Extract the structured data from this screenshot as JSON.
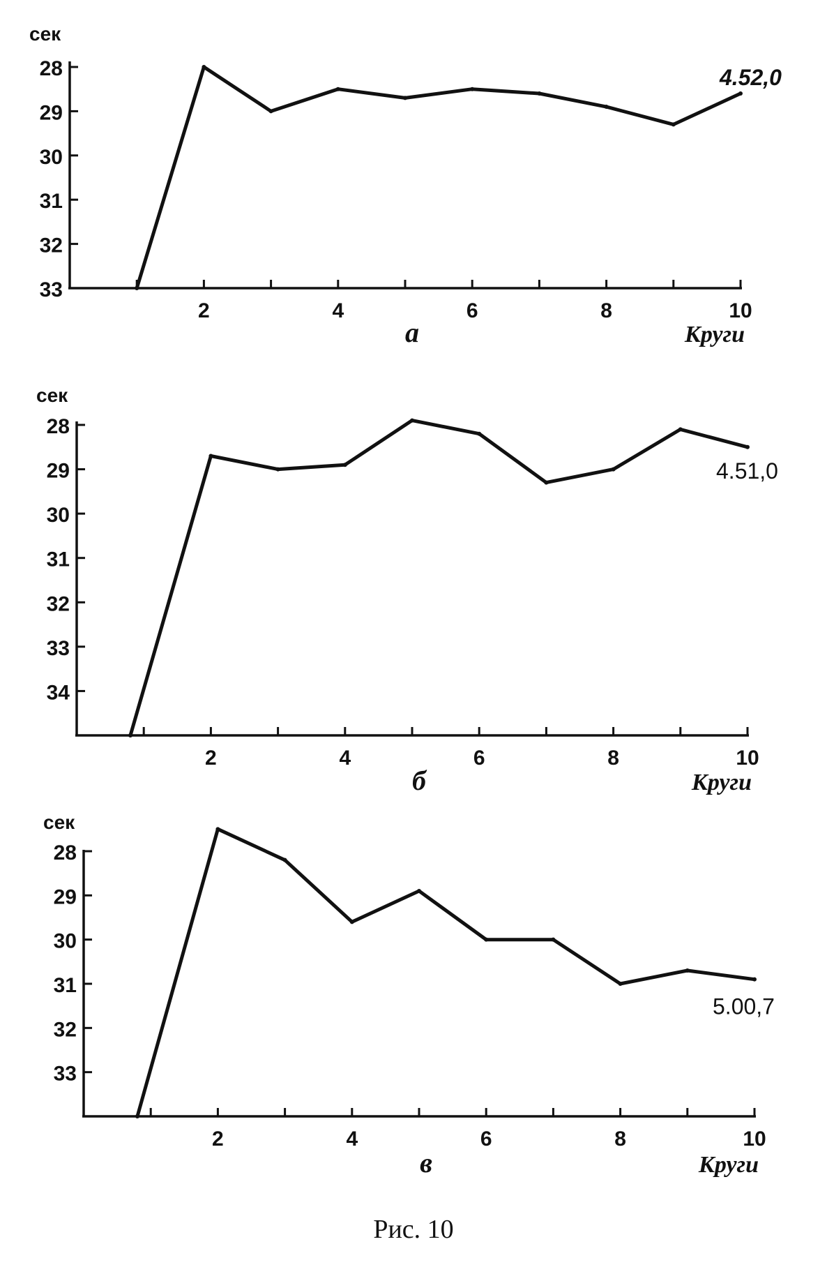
{
  "caption": "Рис. 10",
  "chart_data": [
    {
      "type": "line",
      "panel": "а",
      "ylabel": "сек",
      "xlabel": "Круги",
      "y_inverted": true,
      "ylim": [
        28,
        33
      ],
      "xlim": [
        0,
        10
      ],
      "y_ticks": [
        28,
        29,
        30,
        31,
        32,
        33
      ],
      "x_ticks": [
        2,
        4,
        6,
        8,
        10
      ],
      "x_minor_ticks": [
        1,
        2,
        3,
        4,
        5,
        6,
        7,
        8,
        9,
        10
      ],
      "x": [
        1,
        2,
        3,
        4,
        5,
        6,
        7,
        8,
        9,
        10
      ],
      "values": [
        33.0,
        28.0,
        29.0,
        28.5,
        28.7,
        28.5,
        28.6,
        28.9,
        29.3,
        28.6
      ],
      "end_label": "4.52,0",
      "end_label_bold": true
    },
    {
      "type": "line",
      "panel": "б",
      "ylabel": "сек",
      "xlabel": "Круги",
      "y_inverted": true,
      "ylim": [
        28,
        35
      ],
      "xlim": [
        0,
        10
      ],
      "y_ticks": [
        28,
        29,
        30,
        31,
        32,
        33,
        34
      ],
      "x_ticks": [
        2,
        4,
        6,
        8,
        10
      ],
      "x_minor_ticks": [
        1,
        2,
        3,
        4,
        5,
        6,
        7,
        8,
        9,
        10
      ],
      "x": [
        0.8,
        2,
        3,
        4,
        5,
        6,
        7,
        8,
        9,
        10
      ],
      "values": [
        35.0,
        28.7,
        29.0,
        28.9,
        27.9,
        28.2,
        29.3,
        29.0,
        28.1,
        28.5
      ],
      "end_label": "4.51,0",
      "end_label_bold": false
    },
    {
      "type": "line",
      "panel": "в",
      "ylabel": "сек",
      "xlabel": "Круги",
      "y_inverted": true,
      "ylim": [
        28,
        34
      ],
      "xlim": [
        0,
        10
      ],
      "y_ticks": [
        28,
        29,
        30,
        31,
        32,
        33
      ],
      "x_ticks": [
        2,
        4,
        6,
        8,
        10
      ],
      "x_minor_ticks": [
        1,
        2,
        3,
        4,
        5,
        6,
        7,
        8,
        9,
        10
      ],
      "x": [
        0.8,
        2,
        3,
        4,
        5,
        6,
        7,
        8,
        9,
        10
      ],
      "values": [
        34.0,
        27.5,
        28.2,
        29.6,
        28.9,
        30.0,
        30.0,
        31.0,
        30.7,
        30.9
      ],
      "end_label": "5.00,7",
      "end_label_bold": false
    }
  ]
}
